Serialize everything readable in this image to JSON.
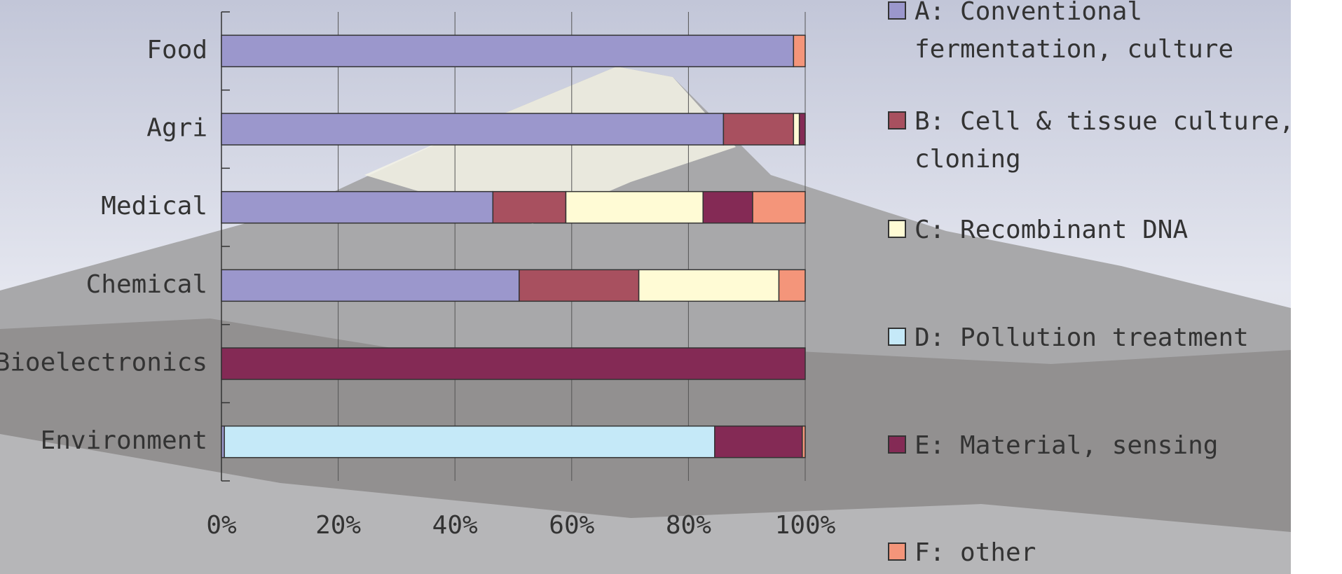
{
  "chart_data": {
    "type": "stacked-bar-horizontal",
    "categories": [
      "Food",
      "Agri",
      "Medical",
      "Chemical",
      "Bioelectronics",
      "Environment"
    ],
    "series": [
      {
        "name": "A: Conventional fermentation, culture",
        "color": "#9b97cc",
        "values": [
          98,
          86,
          46.5,
          51,
          0,
          0.5
        ]
      },
      {
        "name": "B: Cell & tissue culture, cloning",
        "color": "#a8505f",
        "values": [
          0,
          12,
          12.5,
          20.5,
          0,
          0
        ]
      },
      {
        "name": "C: Recombinant DNA",
        "color": "#fffbd5",
        "values": [
          0,
          1,
          23.5,
          24,
          0,
          0
        ]
      },
      {
        "name": "D: Pollution treatment",
        "color": "#c5e9f8",
        "values": [
          0,
          0,
          0,
          0,
          0,
          84
        ]
      },
      {
        "name": "E: Material, sensing",
        "color": "#842a55",
        "values": [
          0,
          1,
          8.5,
          0,
          100,
          15
        ]
      },
      {
        "name": "F: other",
        "color": "#f4957a",
        "values": [
          2,
          0,
          9,
          4.5,
          0,
          0.5
        ]
      }
    ],
    "xlim": [
      0,
      100
    ],
    "xticks": [
      {
        "value": 0,
        "label": "0%"
      },
      {
        "value": 20,
        "label": "20%"
      },
      {
        "value": 40,
        "label": "40%"
      },
      {
        "value": 60,
        "label": "60%"
      },
      {
        "value": 80,
        "label": "80%"
      },
      {
        "value": 100,
        "label": "100%"
      }
    ],
    "grid": true
  }
}
